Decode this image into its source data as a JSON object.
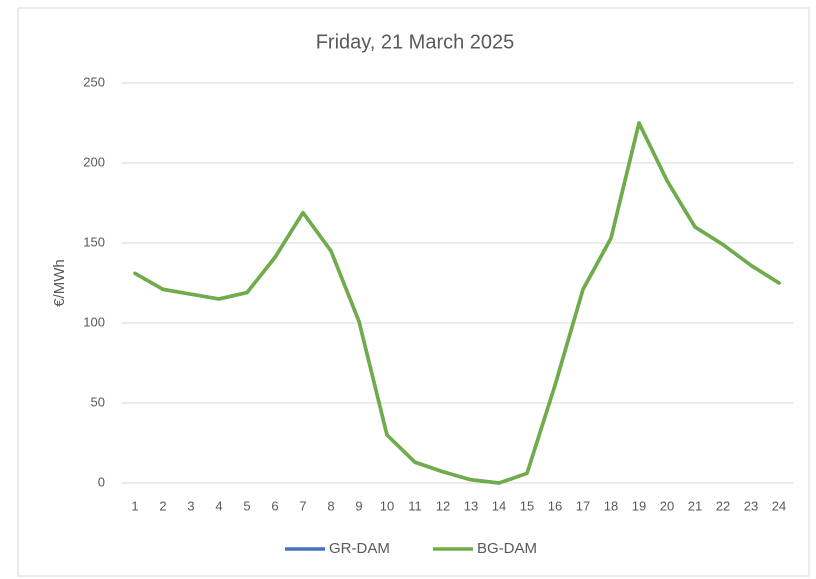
{
  "chart_data": {
    "type": "line",
    "title": "Friday, 21 March 2025",
    "y_label": "€/MWh",
    "categories": [
      "1",
      "2",
      "3",
      "4",
      "5",
      "6",
      "7",
      "8",
      "9",
      "10",
      "11",
      "12",
      "13",
      "14",
      "15",
      "16",
      "17",
      "18",
      "19",
      "20",
      "21",
      "22",
      "23",
      "24"
    ],
    "series": [
      {
        "name": "GR-DAM",
        "color": "#4472c4",
        "values": [
          131,
          121,
          118,
          115,
          119,
          141,
          169,
          145,
          101,
          30,
          13,
          7,
          2,
          0,
          6,
          61,
          121,
          153,
          225,
          189,
          160,
          149,
          136,
          125
        ]
      },
      {
        "name": "BG-DAM",
        "color": "#70ad47",
        "values": [
          131,
          121,
          118,
          115,
          119,
          141,
          169,
          145,
          101,
          30,
          13,
          7,
          2,
          0,
          6,
          61,
          121,
          153,
          225,
          189,
          160,
          149,
          136,
          125
        ]
      }
    ],
    "ylim": [
      0,
      250
    ],
    "yticks": [
      0,
      50,
      100,
      150,
      200,
      250
    ],
    "grid": true,
    "legend": "bottom"
  }
}
